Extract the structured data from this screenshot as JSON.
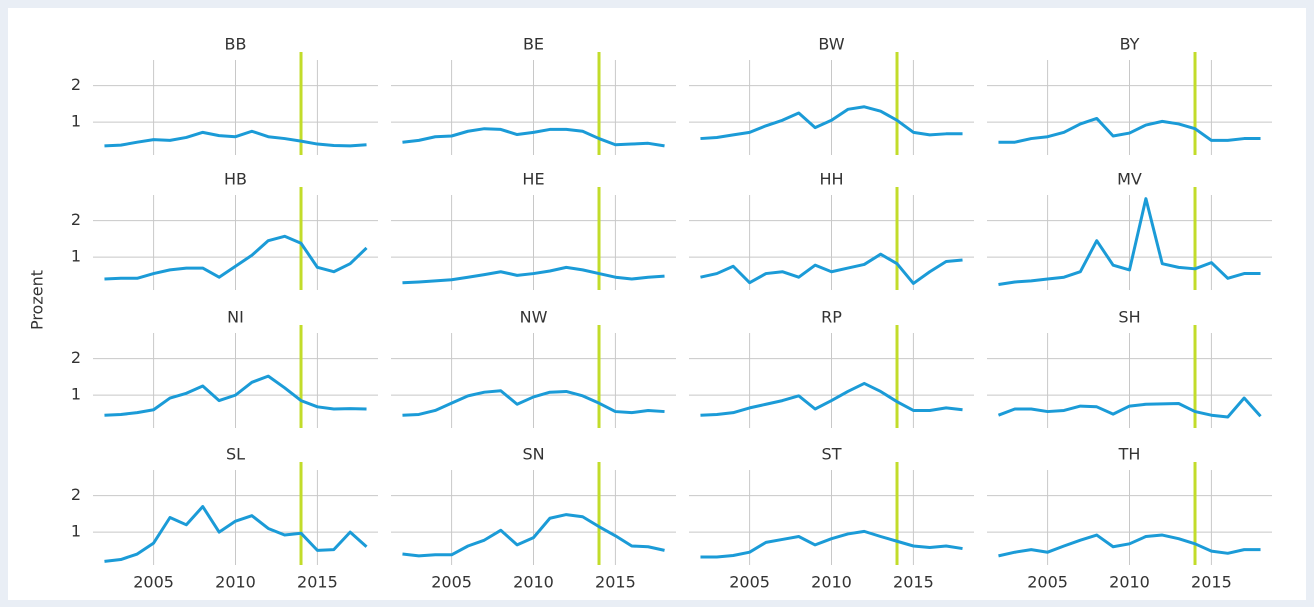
{
  "chart_data": {
    "type": "line",
    "ylabel": "Prozent",
    "x": [
      2002,
      2003,
      2004,
      2005,
      2006,
      2007,
      2008,
      2009,
      2010,
      2011,
      2012,
      2013,
      2014,
      2015,
      2016,
      2017,
      2018
    ],
    "xlim": [
      2001.3,
      2018.7
    ],
    "xticks": [
      2005,
      2010,
      2015
    ],
    "ylim": [
      0.1,
      2.7
    ],
    "yticks": [
      1,
      2
    ],
    "grid": true,
    "color": "#1b9bd7",
    "reference_x": 2014,
    "reference_color": "#c2dc2a",
    "series": [
      {
        "name": "BB",
        "values": [
          0.35,
          0.37,
          0.45,
          0.52,
          0.5,
          0.58,
          0.72,
          0.63,
          0.6,
          0.75,
          0.6,
          0.55,
          0.48,
          0.4,
          0.36,
          0.35,
          0.38
        ]
      },
      {
        "name": "BE",
        "values": [
          0.45,
          0.5,
          0.6,
          0.62,
          0.75,
          0.82,
          0.8,
          0.66,
          0.72,
          0.8,
          0.8,
          0.75,
          0.55,
          0.38,
          0.4,
          0.42,
          0.35
        ]
      },
      {
        "name": "BW",
        "values": [
          0.55,
          0.58,
          0.65,
          0.72,
          0.9,
          1.05,
          1.25,
          0.85,
          1.05,
          1.35,
          1.42,
          1.3,
          1.05,
          0.72,
          0.65,
          0.68,
          0.68
        ]
      },
      {
        "name": "BY",
        "values": [
          0.45,
          0.45,
          0.55,
          0.6,
          0.72,
          0.95,
          1.1,
          0.62,
          0.7,
          0.92,
          1.02,
          0.95,
          0.82,
          0.5,
          0.5,
          0.55,
          0.55
        ]
      },
      {
        "name": "HB",
        "values": [
          0.4,
          0.42,
          0.42,
          0.55,
          0.65,
          0.7,
          0.7,
          0.45,
          0.75,
          1.05,
          1.45,
          1.57,
          1.38,
          0.72,
          0.6,
          0.82,
          1.25
        ]
      },
      {
        "name": "HE",
        "values": [
          0.3,
          0.32,
          0.35,
          0.38,
          0.45,
          0.52,
          0.6,
          0.5,
          0.55,
          0.62,
          0.72,
          0.65,
          0.55,
          0.45,
          0.4,
          0.45,
          0.48
        ]
      },
      {
        "name": "HH",
        "values": [
          0.45,
          0.55,
          0.75,
          0.3,
          0.55,
          0.6,
          0.45,
          0.78,
          0.6,
          0.7,
          0.8,
          1.08,
          0.82,
          0.28,
          0.6,
          0.88,
          0.92
        ]
      },
      {
        "name": "MV",
        "values": [
          0.25,
          0.32,
          0.35,
          0.4,
          0.45,
          0.6,
          1.45,
          0.78,
          0.65,
          2.6,
          0.82,
          0.72,
          0.68,
          0.85,
          0.42,
          0.55,
          0.55
        ]
      },
      {
        "name": "NI",
        "values": [
          0.45,
          0.47,
          0.52,
          0.6,
          0.92,
          1.05,
          1.25,
          0.85,
          1.0,
          1.35,
          1.52,
          1.2,
          0.85,
          0.68,
          0.62,
          0.63,
          0.62
        ]
      },
      {
        "name": "NW",
        "values": [
          0.45,
          0.47,
          0.58,
          0.78,
          0.98,
          1.08,
          1.12,
          0.75,
          0.95,
          1.08,
          1.1,
          0.98,
          0.78,
          0.55,
          0.52,
          0.58,
          0.55
        ]
      },
      {
        "name": "RP",
        "values": [
          0.45,
          0.47,
          0.52,
          0.65,
          0.75,
          0.85,
          0.98,
          0.62,
          0.85,
          1.1,
          1.32,
          1.1,
          0.82,
          0.58,
          0.58,
          0.65,
          0.6
        ]
      },
      {
        "name": "SH",
        "values": [
          0.45,
          0.62,
          0.62,
          0.55,
          0.58,
          0.7,
          0.68,
          0.48,
          0.7,
          0.75,
          0.76,
          0.77,
          0.55,
          0.45,
          0.4,
          0.92,
          0.42
        ]
      },
      {
        "name": "SL",
        "values": [
          0.2,
          0.25,
          0.4,
          0.7,
          1.4,
          1.2,
          1.7,
          1.0,
          1.3,
          1.45,
          1.1,
          0.92,
          0.97,
          0.5,
          0.52,
          1.0,
          0.6
        ]
      },
      {
        "name": "SN",
        "values": [
          0.4,
          0.35,
          0.38,
          0.38,
          0.62,
          0.78,
          1.05,
          0.65,
          0.85,
          1.38,
          1.48,
          1.42,
          1.15,
          0.9,
          0.62,
          0.6,
          0.5
        ]
      },
      {
        "name": "ST",
        "values": [
          0.32,
          0.32,
          0.36,
          0.45,
          0.72,
          0.8,
          0.88,
          0.65,
          0.82,
          0.95,
          1.02,
          0.88,
          0.75,
          0.62,
          0.58,
          0.62,
          0.55
        ]
      },
      {
        "name": "TH",
        "values": [
          0.35,
          0.45,
          0.52,
          0.45,
          0.62,
          0.78,
          0.92,
          0.6,
          0.68,
          0.88,
          0.92,
          0.82,
          0.68,
          0.48,
          0.42,
          0.52,
          0.52
        ]
      }
    ]
  }
}
